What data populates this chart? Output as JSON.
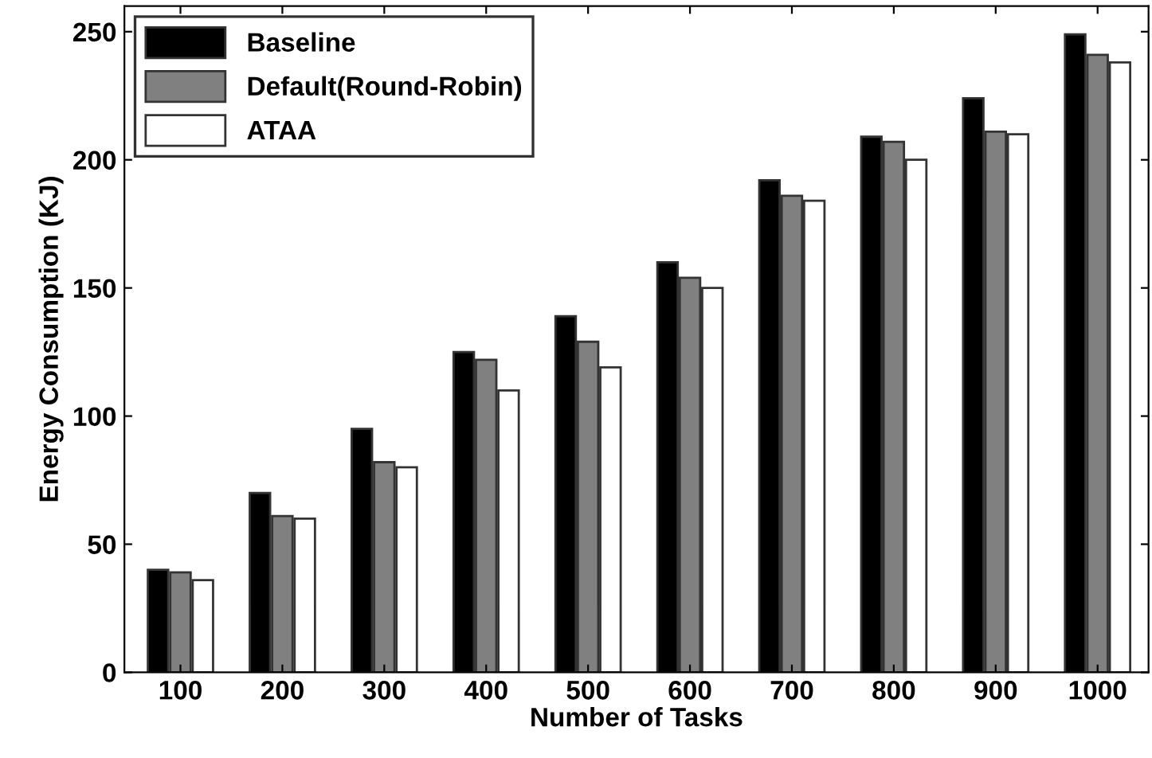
{
  "chart_data": {
    "type": "bar",
    "xlabel": "Number of Tasks",
    "ylabel": "Energy Consumption (KJ)",
    "categories": [
      "100",
      "200",
      "300",
      "400",
      "500",
      "600",
      "700",
      "800",
      "900",
      "1000"
    ],
    "series": [
      {
        "name": "Baseline",
        "color": "#000000",
        "values": [
          40,
          70,
          95,
          125,
          139,
          160,
          192,
          209,
          224,
          249
        ]
      },
      {
        "name": "Default(Round-Robin)",
        "color": "#808080",
        "values": [
          39,
          61,
          82,
          122,
          129,
          154,
          186,
          207,
          211,
          241
        ]
      },
      {
        "name": "ATAA",
        "color": "#ffffff",
        "values": [
          36,
          60,
          80,
          110,
          119,
          150,
          184,
          200,
          210,
          238
        ]
      }
    ],
    "ylim": [
      0,
      260
    ],
    "yticks": [
      0,
      50,
      100,
      150,
      200,
      250
    ],
    "grid": false,
    "legend": "top left"
  }
}
